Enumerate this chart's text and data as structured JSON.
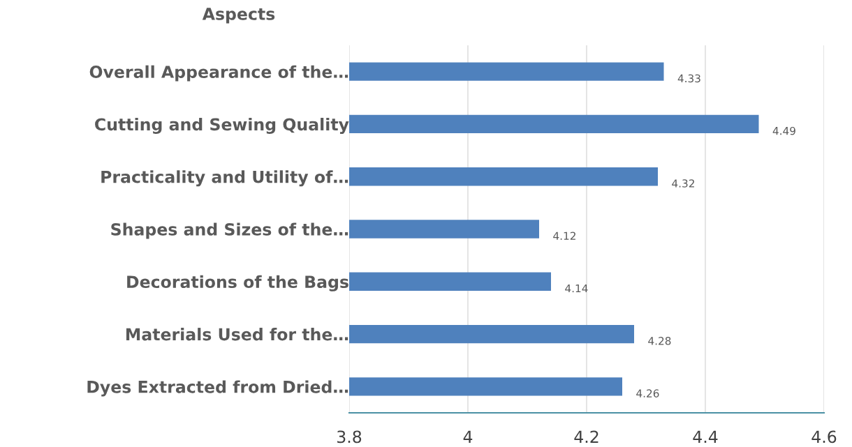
{
  "chart_data": {
    "type": "bar",
    "orientation": "horizontal",
    "ylabel": "Aspects",
    "categories": [
      "Overall Appearance of the…",
      "Cutting and Sewing Quality",
      "Practicality and Utility of…",
      "Shapes and Sizes of the…",
      "Decorations of the Bags",
      "Materials Used for the…",
      "Dyes Extracted from Dried…"
    ],
    "values": [
      4.33,
      4.49,
      4.32,
      4.12,
      4.14,
      4.28,
      4.26
    ],
    "color": "#4f81bd",
    "xlim": [
      3.8,
      4.6
    ],
    "xticks": [
      3.8,
      4,
      4.2,
      4.4,
      4.6
    ],
    "grid": "x",
    "data_labels": true,
    "legend": false
  }
}
